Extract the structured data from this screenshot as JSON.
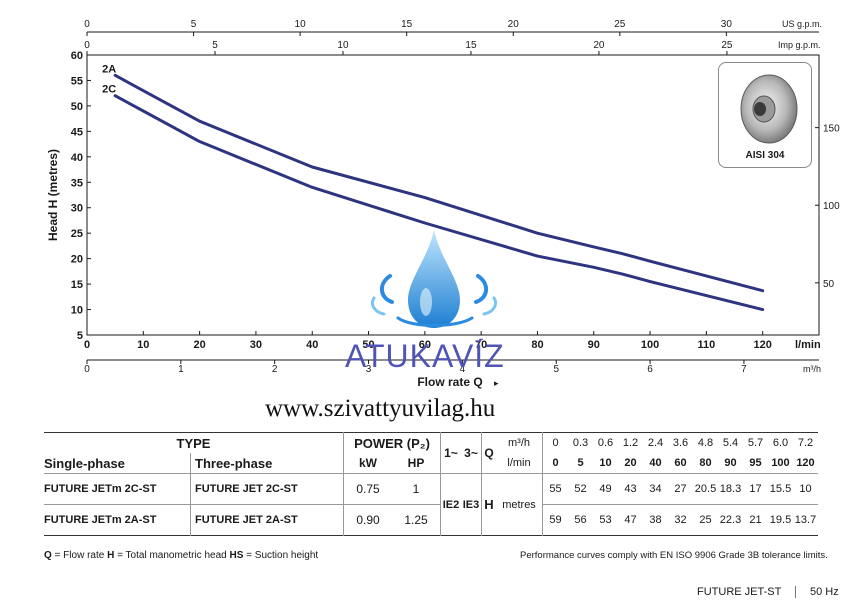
{
  "chart_data": {
    "type": "line",
    "ylabel": "Head H (metres)",
    "xlabel": "Flow rate Q",
    "x_unit_primary": "l/min",
    "y_unit_right": "",
    "x_ticks": [
      0,
      10,
      20,
      30,
      40,
      50,
      60,
      70,
      80,
      90,
      100,
      110,
      120
    ],
    "y_ticks": [
      5,
      10,
      15,
      20,
      25,
      30,
      35,
      40,
      45,
      50,
      55,
      60
    ],
    "right_ticks": [
      50,
      100,
      150
    ],
    "top_axis_1": {
      "unit": "US g.p.m.",
      "ticks": [
        0,
        5,
        10,
        15,
        20,
        25,
        30
      ]
    },
    "top_axis_2": {
      "unit": "Imp g.p.m.",
      "ticks": [
        0,
        5,
        10,
        15,
        20,
        25
      ]
    },
    "bottom_axis_2": {
      "unit": "m³/h",
      "ticks": [
        0,
        1,
        2,
        3,
        4,
        5,
        6,
        7
      ]
    },
    "xlim": [
      0,
      130
    ],
    "ylim": [
      5,
      60
    ],
    "grid": false,
    "series": [
      {
        "name": "2A",
        "color": "#2d3580",
        "x": [
          5,
          10,
          20,
          40,
          60,
          80,
          90,
          95,
          100,
          120
        ],
        "y": [
          56,
          53,
          47,
          38,
          32,
          25,
          22.3,
          21,
          19.5,
          13.7
        ]
      },
      {
        "name": "2C",
        "color": "#2d3580",
        "x": [
          5,
          10,
          20,
          40,
          60,
          80,
          90,
          95,
          100,
          120
        ],
        "y": [
          52,
          49,
          43,
          34,
          27,
          20.5,
          18.3,
          17,
          15.5,
          10
        ]
      }
    ]
  },
  "inset": {
    "label": "AISI 304"
  },
  "watermark": "ATUKAVÍZ",
  "site": "www.szivattyuvilag.hu",
  "table": {
    "type_header": "TYPE",
    "power_header": "POWER (P₂)",
    "col_single": "Single-phase",
    "col_three": "Three-phase",
    "col_kw": "kW",
    "col_hp": "HP",
    "col_1ph": "1~",
    "col_3ph": "3~",
    "q_symbol": "Q",
    "q_unit_m3h": "m³/h",
    "q_unit_lmin": "l/min",
    "q_m3h": [
      "0",
      "0.3",
      "0.6",
      "1.2",
      "2.4",
      "3.6",
      "4.8",
      "5.4",
      "5.7",
      "6.0",
      "7.2"
    ],
    "q_lmin": [
      "0",
      "5",
      "10",
      "20",
      "40",
      "60",
      "80",
      "90",
      "95",
      "100",
      "120"
    ],
    "ie2": "IE2",
    "ie3": "IE3",
    "h_symbol": "H",
    "h_unit": "metres",
    "rows": [
      {
        "single": "FUTURE JETm 2C-ST",
        "three": "FUTURE JET 2C-ST",
        "kw": "0.75",
        "hp": "1",
        "h": [
          "55",
          "52",
          "49",
          "43",
          "34",
          "27",
          "20.5",
          "18.3",
          "17",
          "15.5",
          "10"
        ]
      },
      {
        "single": "FUTURE JETm 2A-ST",
        "three": "FUTURE JET 2A-ST",
        "kw": "0.90",
        "hp": "1.25",
        "h": [
          "59",
          "56",
          "53",
          "47",
          "38",
          "32",
          "25",
          "22.3",
          "21",
          "19.5",
          "13.7"
        ]
      }
    ]
  },
  "footnote_left": {
    "q": "Q",
    "q_text": " = Flow rate  ",
    "h": "H",
    "h_text": " = Total manometric head  ",
    "hs": "HS",
    "hs_text": " = Suction height"
  },
  "footnote_right": "Performance curves comply with EN ISO 9906 Grade 3B tolerance limits.",
  "brand": "FUTURE JET-ST",
  "hz": "50 Hz"
}
